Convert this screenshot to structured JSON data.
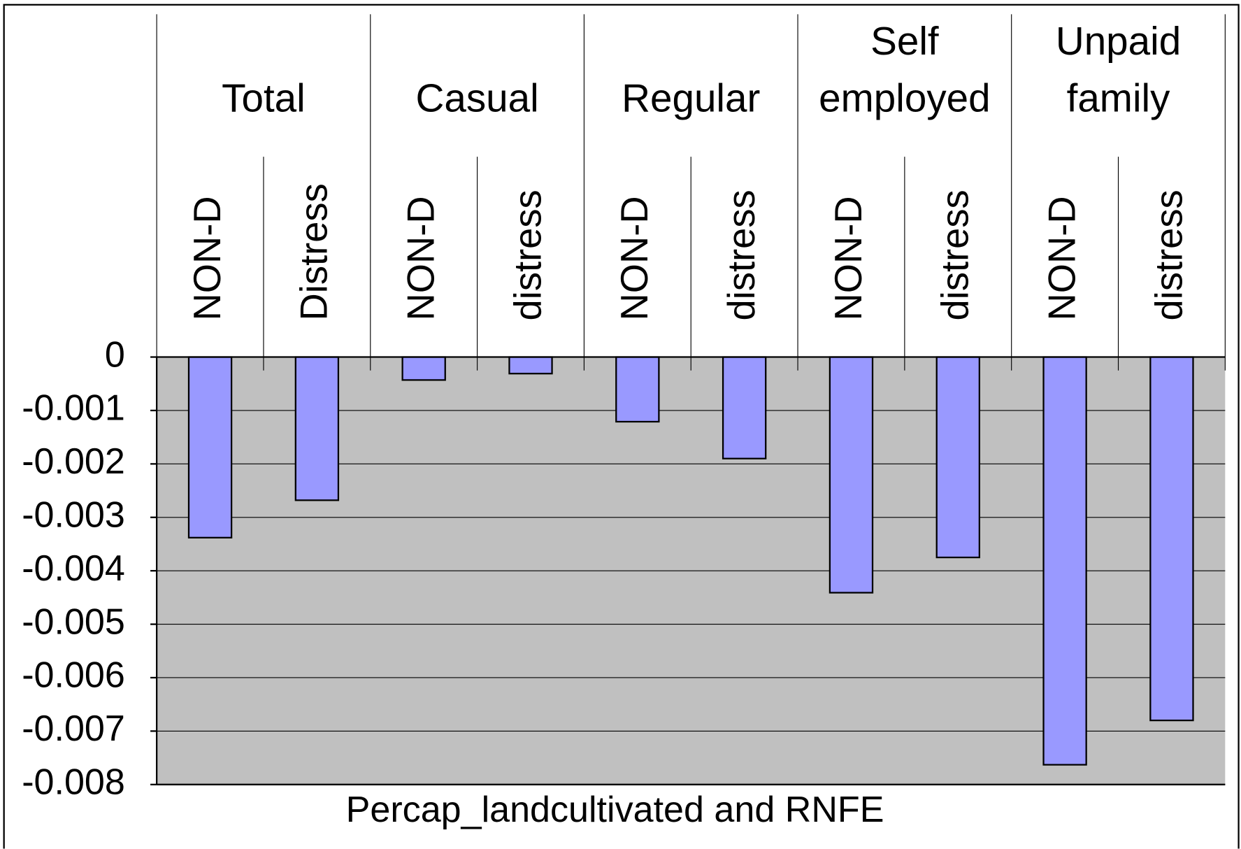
{
  "chart_data": {
    "type": "bar",
    "groups": [
      "Total",
      "Casual",
      "Regular",
      "Self employed",
      "Unpaid family"
    ],
    "categories": [
      "NON-D",
      "Distress",
      "NON-D",
      "distress",
      "NON-D",
      "distress",
      "NON-D",
      "distress",
      "NON-D",
      "distress"
    ],
    "values": [
      -0.00338,
      -0.00268,
      -0.00043,
      -0.00031,
      -0.00121,
      -0.0019,
      -0.00441,
      -0.00375,
      -0.00763,
      -0.0068
    ],
    "color": "#9999ff",
    "x_label": "Percap_landcultivated and RNFE",
    "ylim": [
      -0.008,
      0
    ],
    "yticks": [
      0,
      -0.001,
      -0.002,
      -0.003,
      -0.004,
      -0.005,
      -0.006,
      -0.007,
      -0.008
    ],
    "grid": true
  }
}
